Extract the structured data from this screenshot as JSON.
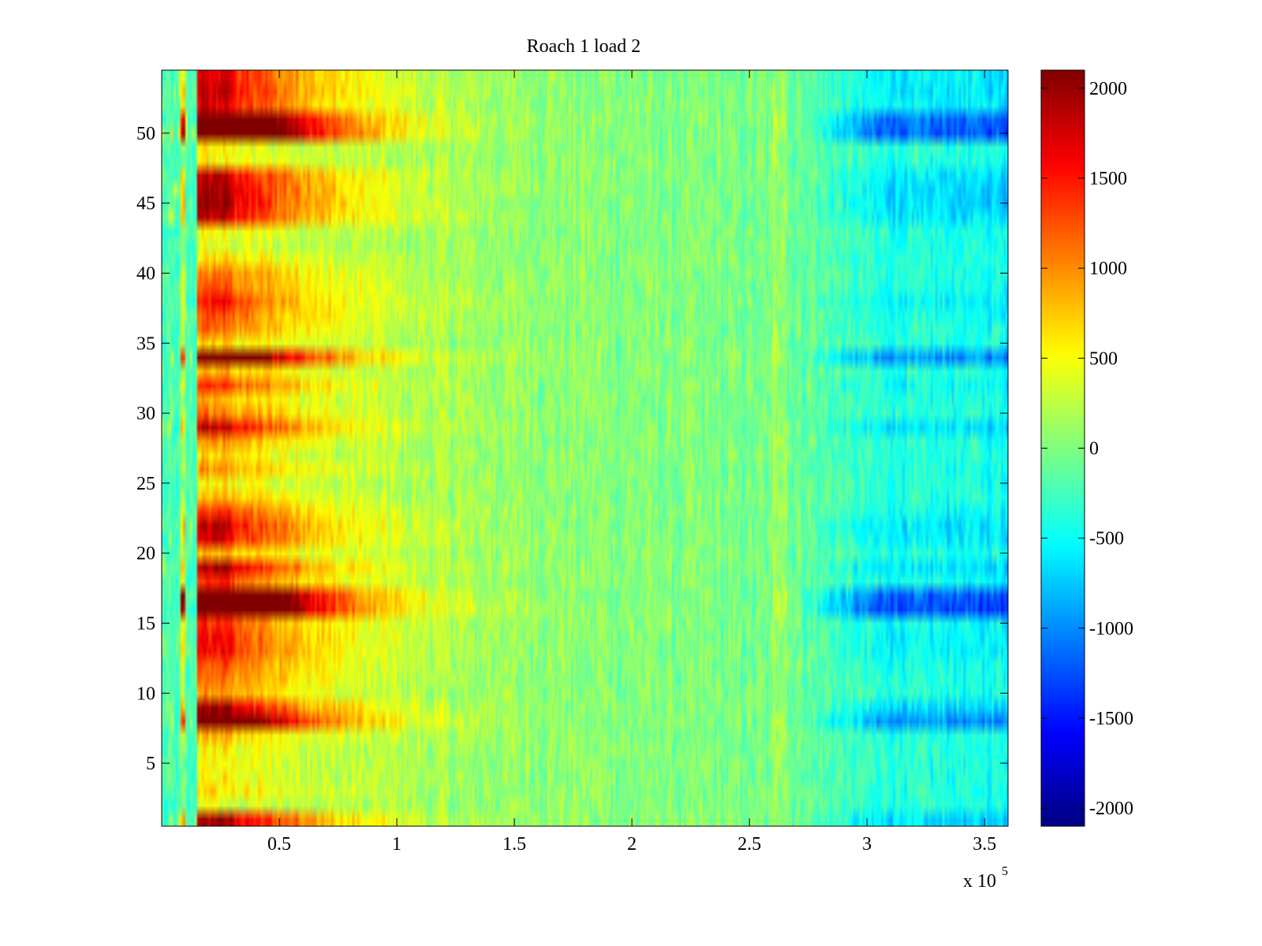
{
  "chart_data": {
    "type": "heatmap",
    "title": "Roach 1 load 2",
    "xlabel": "",
    "ylabel": "",
    "x_exponent_label": "x 10",
    "x_exponent": "5",
    "xlim": [
      0,
      360000
    ],
    "ylim": [
      0.5,
      54.5
    ],
    "rows": 54,
    "columns": 360,
    "x_ticks": [
      {
        "value": 50000,
        "label": "0.5"
      },
      {
        "value": 100000,
        "label": "1"
      },
      {
        "value": 150000,
        "label": "1.5"
      },
      {
        "value": 200000,
        "label": "2"
      },
      {
        "value": 250000,
        "label": "2.5"
      },
      {
        "value": 300000,
        "label": "3"
      },
      {
        "value": 350000,
        "label": "3.5"
      }
    ],
    "y_ticks": [
      {
        "value": 5,
        "label": "5"
      },
      {
        "value": 10,
        "label": "10"
      },
      {
        "value": 15,
        "label": "15"
      },
      {
        "value": 20,
        "label": "20"
      },
      {
        "value": 25,
        "label": "25"
      },
      {
        "value": 30,
        "label": "30"
      },
      {
        "value": 35,
        "label": "35"
      },
      {
        "value": 40,
        "label": "40"
      },
      {
        "value": 45,
        "label": "45"
      },
      {
        "value": 50,
        "label": "50"
      }
    ],
    "colorbar": {
      "colormap": "jet",
      "clim": [
        -2100,
        2100
      ],
      "ticks": [
        {
          "value": 2000,
          "label": "2000"
        },
        {
          "value": 1500,
          "label": "1500"
        },
        {
          "value": 1000,
          "label": "1000"
        },
        {
          "value": 500,
          "label": "500"
        },
        {
          "value": 0,
          "label": "0"
        },
        {
          "value": -500,
          "label": "-500"
        },
        {
          "value": -1000,
          "label": "-1000"
        },
        {
          "value": -1500,
          "label": "-1500"
        },
        {
          "value": -2000,
          "label": "-2000"
        }
      ]
    },
    "row_strength": [
      0.6,
      0.05,
      0.15,
      0.1,
      0.1,
      0.1,
      0.2,
      0.95,
      0.6,
      0.25,
      0.3,
      0.35,
      0.45,
      0.45,
      0.4,
      1.3,
      1.2,
      0.4,
      0.6,
      0.2,
      0.5,
      0.55,
      0.4,
      0.2,
      0.1,
      0.25,
      0.15,
      0.25,
      0.55,
      0.3,
      0.2,
      0.4,
      0.2,
      0.95,
      0.15,
      0.3,
      0.35,
      0.45,
      0.35,
      0.3,
      0.15,
      0.05,
      0.1,
      0.55,
      0.6,
      0.6,
      0.55,
      0.1,
      0.1,
      1.2,
      1.1,
      0.5,
      0.55,
      0.5
    ],
    "note_profile": "values derived from visible heatmap pattern",
    "profile": {
      "onset_x": 15000,
      "peak_x": 30000,
      "decay_x": 60000,
      "late_ridge_x": 263000,
      "neg_start_x": 270000,
      "neg_full_x": 305000
    }
  }
}
